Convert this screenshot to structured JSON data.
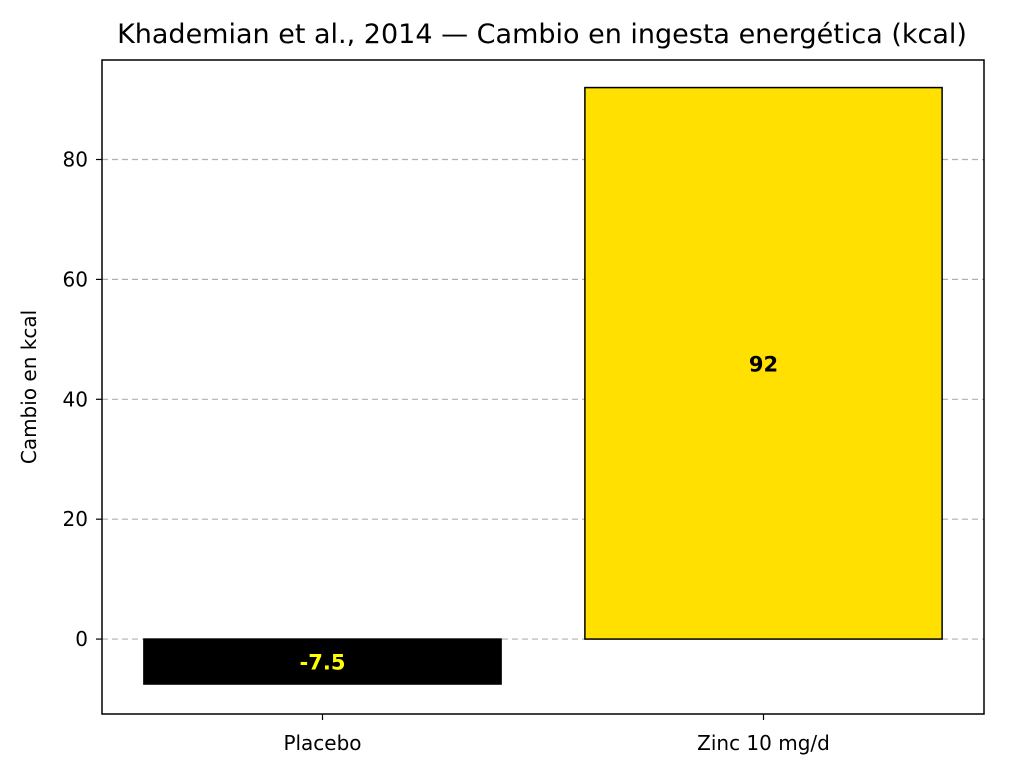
{
  "chart_data": {
    "type": "bar",
    "title": "Khademian et al., 2014 — Cambio en ingesta energética (kcal)",
    "xlabel": "",
    "ylabel": "Cambio en kcal",
    "categories": [
      "Placebo",
      "Zinc 10 mg/d"
    ],
    "values": [
      -7.5,
      92
    ],
    "data_labels": [
      "-7.5",
      "92"
    ],
    "bar_colors": [
      "#000000",
      "#ffe000"
    ],
    "label_colors": [
      "#ffff00",
      "#000000"
    ],
    "ylim": [
      -12.5,
      96.6
    ],
    "yticks": [
      0,
      20,
      40,
      60,
      80
    ],
    "grid": true,
    "grid_axis": "y",
    "legend": null
  }
}
